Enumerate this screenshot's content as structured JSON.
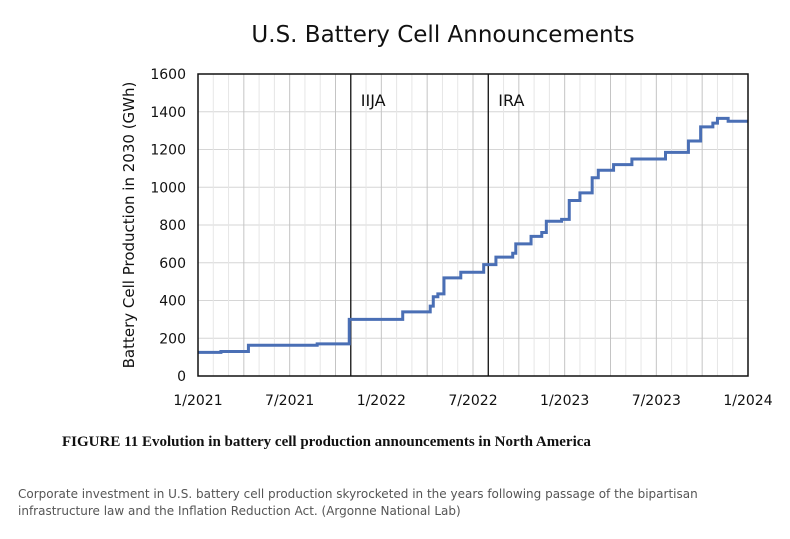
{
  "chart_data": {
    "type": "line",
    "title": "U.S. Battery Cell Announcements",
    "ylabel": "Battery Cell Production in 2030 (GWh)",
    "xlabel": "",
    "xlim": [
      "2021-01",
      "2024-01"
    ],
    "ylim": [
      0,
      1600
    ],
    "yticks": [
      0,
      200,
      400,
      600,
      800,
      1000,
      1200,
      1400,
      1600
    ],
    "xtick_labels": [
      "1/2021",
      "7/2021",
      "1/2022",
      "7/2022",
      "1/2023",
      "7/2023",
      "1/2024"
    ],
    "grid": true,
    "line_color": "#4a6fb5",
    "annotations": [
      {
        "label": "IIJA",
        "x": "2021-11"
      },
      {
        "label": "IRA",
        "x": "2022-08"
      }
    ],
    "series": [
      {
        "style": "step",
        "points": [
          [
            "2021-01",
            125
          ],
          [
            "2021-02.5",
            130
          ],
          [
            "2021-04.3",
            163
          ],
          [
            "2021-08.8",
            170
          ],
          [
            "2021-10.9",
            300
          ],
          [
            "2022-02.4",
            340
          ],
          [
            "2022-04.2",
            370
          ],
          [
            "2022-04.4",
            420
          ],
          [
            "2022-04.7",
            435
          ],
          [
            "2022-05.1",
            520
          ],
          [
            "2022-06.2",
            550
          ],
          [
            "2022-07.7",
            590
          ],
          [
            "2022-08.5",
            630
          ],
          [
            "2022-09.6",
            650
          ],
          [
            "2022-09.8",
            700
          ],
          [
            "2022-10.8",
            740
          ],
          [
            "2022-11.5",
            760
          ],
          [
            "2022-11.8",
            820
          ],
          [
            "2022-12.8",
            830
          ],
          [
            "2023-01.3",
            930
          ],
          [
            "2023-02.0",
            970
          ],
          [
            "2023-02.8",
            1050
          ],
          [
            "2023-03.2",
            1090
          ],
          [
            "2023-04.2",
            1120
          ],
          [
            "2023-05.4",
            1150
          ],
          [
            "2023-07.6",
            1185
          ],
          [
            "2023-09.1",
            1245
          ],
          [
            "2023-09.9",
            1320
          ],
          [
            "2023-10.7",
            1340
          ],
          [
            "2023-11.0",
            1365
          ],
          [
            "2023-11.7",
            1350
          ],
          [
            "2024-01",
            1350
          ]
        ]
      }
    ]
  },
  "caption": "FIGURE 11  Evolution in battery cell production announcements in North America",
  "description": "Corporate investment in U.S. battery cell production skyrocketed in the years following passage of the bipartisan infrastructure law and the Inflation Reduction Act. (Argonne National Lab)"
}
